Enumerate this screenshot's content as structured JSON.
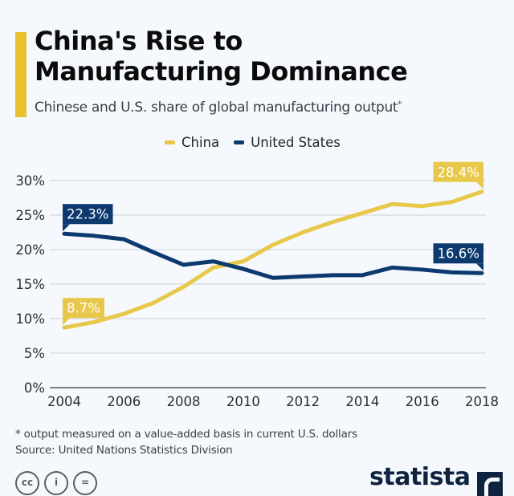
{
  "header": {
    "title_line1": "China's Rise to",
    "title_line2": "Manufacturing Dominance",
    "subtitle": "Chinese and U.S. share of global manufacturing output",
    "subtitle_mark": "*"
  },
  "colors": {
    "china": "#e8c84a",
    "united_states": "#0d3a6e",
    "accent": "#e8c22e",
    "grid": "#d5d9de",
    "axis": "#7a7f86"
  },
  "chart_data": {
    "type": "line",
    "title": "China's Rise to Manufacturing Dominance",
    "subtitle": "Chinese and U.S. share of global manufacturing output*",
    "xlabel": "",
    "ylabel": "",
    "x": [
      2004,
      2005,
      2006,
      2007,
      2008,
      2009,
      2010,
      2011,
      2012,
      2013,
      2014,
      2015,
      2016,
      2017,
      2018
    ],
    "x_ticks": [
      "2004",
      "2006",
      "2008",
      "2010",
      "2012",
      "2014",
      "2016",
      "2018"
    ],
    "x_tick_values": [
      2004,
      2006,
      2008,
      2010,
      2012,
      2014,
      2016,
      2018
    ],
    "xlim": [
      2004,
      2018
    ],
    "ylim": [
      0,
      30
    ],
    "y_ticks": [
      0,
      5,
      10,
      15,
      20,
      25,
      30
    ],
    "y_tick_labels": [
      "0%",
      "5%",
      "10%",
      "15%",
      "20%",
      "25%",
      "30%"
    ],
    "grid": true,
    "legend_position": "top-center",
    "series": [
      {
        "name": "China",
        "values": [
          8.7,
          9.5,
          10.7,
          12.3,
          14.6,
          17.4,
          18.3,
          20.7,
          22.5,
          24.0,
          25.3,
          26.6,
          26.3,
          26.9,
          28.4
        ],
        "annotations": [
          {
            "year": 2004,
            "label": "8.7%"
          },
          {
            "year": 2018,
            "label": "28.4%"
          }
        ]
      },
      {
        "name": "United States",
        "values": [
          22.3,
          22.0,
          21.5,
          19.6,
          17.8,
          18.3,
          17.2,
          15.9,
          16.1,
          16.3,
          16.3,
          17.4,
          17.1,
          16.7,
          16.6
        ],
        "annotations": [
          {
            "year": 2004,
            "label": "22.3%"
          },
          {
            "year": 2018,
            "label": "16.6%"
          }
        ]
      }
    ]
  },
  "legend": {
    "items": [
      {
        "label": "China"
      },
      {
        "label": "United States"
      }
    ]
  },
  "footer": {
    "note": "* output measured on a value-added basis in current U.S. dollars",
    "source": "Source: United Nations Statistics Division",
    "license_icons": [
      "cc",
      "by",
      "nd"
    ],
    "license_glyphs": [
      "cc",
      "i",
      "="
    ],
    "logo": "statista"
  }
}
